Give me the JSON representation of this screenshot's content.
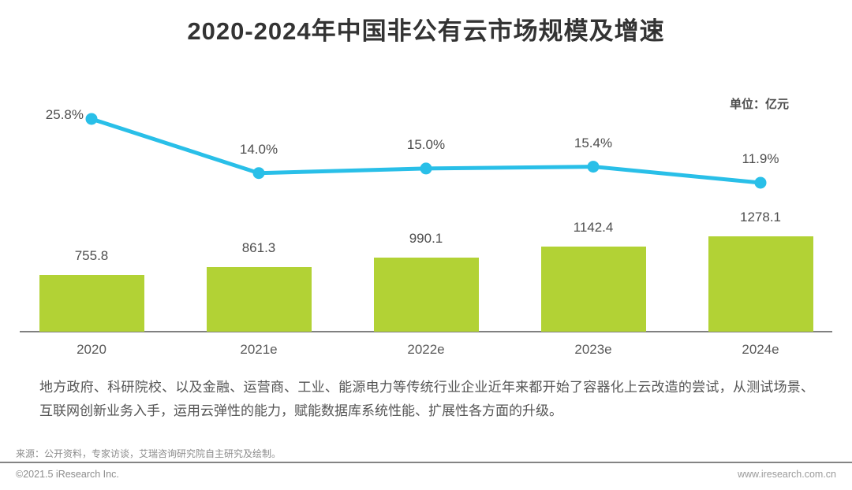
{
  "page": {
    "title": "2020-2024年中国非公有云市场规模及增速",
    "unit_label": "单位：亿元",
    "body_text": "地方政府、科研院校、以及金融、运营商、工业、能源电力等传统行业企业近年来都开始了容器化上云改造的尝试，从测试场景、互联网创新业务入手，运用云弹性的能力，赋能数据库系统性能、扩展性各方面的升级。",
    "source_note": "来源：公开资料，专家访谈，艾瑞咨询研究院自主研究及绘制。",
    "copyright": "©2021.5 iResearch Inc.",
    "website": "www.iresearch.com.cn"
  },
  "colors": {
    "bar": "#B2D235",
    "line": "#29BFE8",
    "title_text": "#333333",
    "label_text": "#4d4d4d",
    "axis_line": "#808080",
    "body_text": "#555555",
    "footer_text": "#8c8c8c"
  },
  "chart_data": {
    "type": "bar",
    "combo": "bar+line",
    "title": "2020-2024年中国非公有云市场规模及增速",
    "unit": "亿元",
    "categories": [
      "2020",
      "2021e",
      "2022e",
      "2023e",
      "2024e"
    ],
    "series": [
      {
        "name": "中国非公有云市场规模(亿元)",
        "type": "bar",
        "values": [
          755.8,
          861.3,
          990.1,
          1142.4,
          1278.1
        ]
      },
      {
        "name": "增速(%)",
        "type": "line",
        "values": [
          25.8,
          14.0,
          15.0,
          15.4,
          11.9
        ]
      }
    ],
    "value_labels_shown": true,
    "growth_labels": [
      "25.8%",
      "14.0%",
      "15.0%",
      "15.4%",
      "11.9%"
    ],
    "bar_labels": [
      "755.8",
      "861.3",
      "990.1",
      "1142.4",
      "1278.1"
    ],
    "legend": "none",
    "grid": false,
    "y_axis_shown": false
  }
}
